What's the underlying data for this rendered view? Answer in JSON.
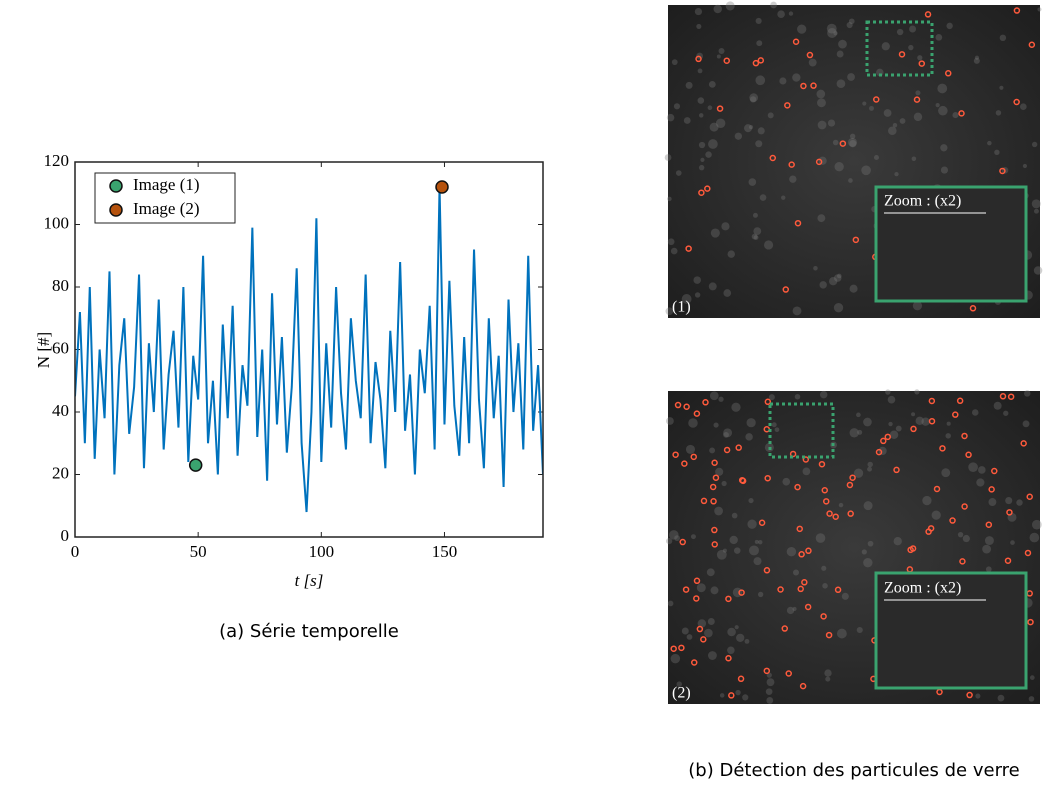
{
  "chart_data": {
    "type": "line",
    "xlabel": "t [s]",
    "ylabel": "N [#]",
    "xlim": [
      0,
      190
    ],
    "ylim": [
      0,
      120
    ],
    "xticks": [
      0,
      50,
      100,
      150
    ],
    "yticks": [
      0,
      20,
      40,
      60,
      80,
      100,
      120
    ],
    "grid": false,
    "legend": "upper left",
    "x": [
      0,
      2,
      4,
      6,
      8,
      10,
      12,
      14,
      16,
      18,
      20,
      22,
      24,
      26,
      28,
      30,
      32,
      34,
      36,
      38,
      40,
      42,
      44,
      46,
      48,
      50,
      52,
      54,
      56,
      58,
      60,
      62,
      64,
      66,
      68,
      70,
      72,
      74,
      76,
      78,
      80,
      82,
      84,
      86,
      88,
      90,
      92,
      94,
      96,
      98,
      100,
      102,
      104,
      106,
      108,
      110,
      112,
      114,
      116,
      118,
      120,
      122,
      124,
      126,
      128,
      130,
      132,
      134,
      136,
      138,
      140,
      142,
      144,
      146,
      148,
      150,
      152,
      154,
      156,
      158,
      160,
      162,
      164,
      166,
      168,
      170,
      172,
      174,
      176,
      178,
      180,
      182,
      184,
      186,
      188,
      190
    ],
    "series": [
      {
        "color": "#0072bd",
        "values": [
          45,
          72,
          30,
          80,
          25,
          60,
          38,
          85,
          20,
          55,
          70,
          33,
          48,
          84,
          22,
          62,
          40,
          76,
          28,
          52,
          66,
          35,
          80,
          24,
          58,
          44,
          90,
          30,
          50,
          20,
          68,
          38,
          74,
          26,
          55,
          42,
          99,
          32,
          60,
          18,
          78,
          36,
          64,
          27,
          48,
          86,
          30,
          8,
          40,
          102,
          24,
          62,
          35,
          80,
          46,
          28,
          70,
          50,
          38,
          84,
          30,
          56,
          44,
          22,
          66,
          40,
          88,
          34,
          52,
          20,
          60,
          46,
          74,
          28,
          112,
          36,
          82,
          42,
          26,
          64,
          30,
          92,
          44,
          22,
          70,
          38,
          58,
          16,
          76,
          40,
          62,
          28,
          90,
          34,
          55,
          20
        ]
      }
    ],
    "markers": [
      {
        "name": "Image (1)",
        "color": "#3aa36f",
        "x": 49,
        "y": 23
      },
      {
        "name": "Image (2)",
        "color": "#b5520d",
        "x": 149,
        "y": 112
      }
    ],
    "caption": "(a) Série temporelle"
  },
  "images": [
    {
      "label": "(1)",
      "zoom_label": "Zoom : (x2)"
    },
    {
      "label": "(2)",
      "zoom_label": "Zoom : (x2)"
    }
  ],
  "caption_b": "(b) Détection des particules de verre"
}
